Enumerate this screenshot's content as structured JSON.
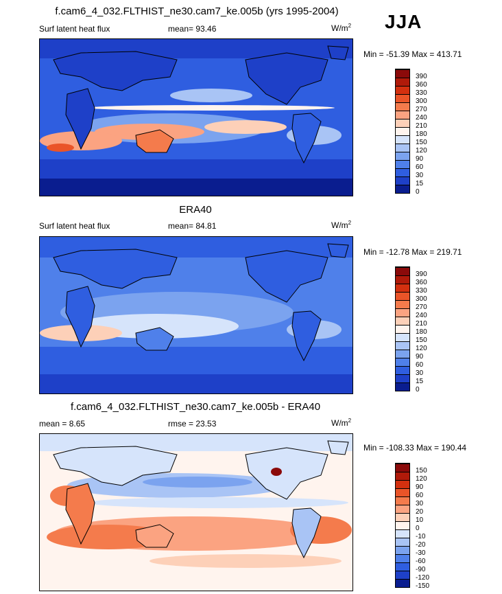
{
  "header": {
    "season": "JJA"
  },
  "panels": [
    {
      "title": "f.cam6_4_032.FLTHIST_ne30.cam7_ke.005b (yrs 1995-2004)",
      "left_label": "Surf latent heat flux",
      "center_label": "mean=  93.46",
      "units_base": "W/m",
      "units_exp": "2",
      "minmax": "Min = -51.39 Max = 413.71",
      "colorbar_labels": [
        "390",
        "360",
        "330",
        "300",
        "270",
        "240",
        "210",
        "180",
        "150",
        "120",
        "90",
        "60",
        "30",
        "15",
        "0"
      ]
    },
    {
      "title": "ERA40",
      "left_label": "Surf latent heat flux",
      "center_label": "mean=  84.81",
      "units_base": "W/m",
      "units_exp": "2",
      "minmax": "Min = -12.78 Max = 219.71",
      "colorbar_labels": [
        "390",
        "360",
        "330",
        "300",
        "270",
        "240",
        "210",
        "180",
        "150",
        "120",
        "90",
        "60",
        "30",
        "15",
        "0"
      ]
    },
    {
      "title": "f.cam6_4_032.FLTHIST_ne30.cam7_ke.005b - ERA40",
      "left_label": "mean =   8.65",
      "center_label": "rmse =  23.53",
      "units_base": "W/m",
      "units_exp": "2",
      "minmax": "Min = -108.33 Max = 190.44",
      "colorbar_labels": [
        "150",
        "120",
        "90",
        "60",
        "30",
        "20",
        "10",
        "0",
        "-10",
        "-20",
        "-30",
        "-60",
        "-90",
        "-120",
        "-150"
      ]
    }
  ],
  "colors": {
    "abs_scale": [
      "#8b0a0a",
      "#b01a0a",
      "#d3300f",
      "#ea5428",
      "#f47b4c",
      "#fba381",
      "#fdd0b8",
      "#fff4ee",
      "#d6e4fb",
      "#a9c4f5",
      "#7ba3ef",
      "#4f80ea",
      "#2f5ee0",
      "#1e40c8",
      "#0a1d8f"
    ],
    "diff_scale": [
      "#8b0a0a",
      "#b01a0a",
      "#d3300f",
      "#ea5428",
      "#f47b4c",
      "#fba381",
      "#fdd0b8",
      "#fff4ee",
      "#d6e4fb",
      "#a9c4f5",
      "#7ba3ef",
      "#4f80ea",
      "#2f5ee0",
      "#1e40c8",
      "#0a1d8f"
    ],
    "land_outline": "#000000"
  }
}
